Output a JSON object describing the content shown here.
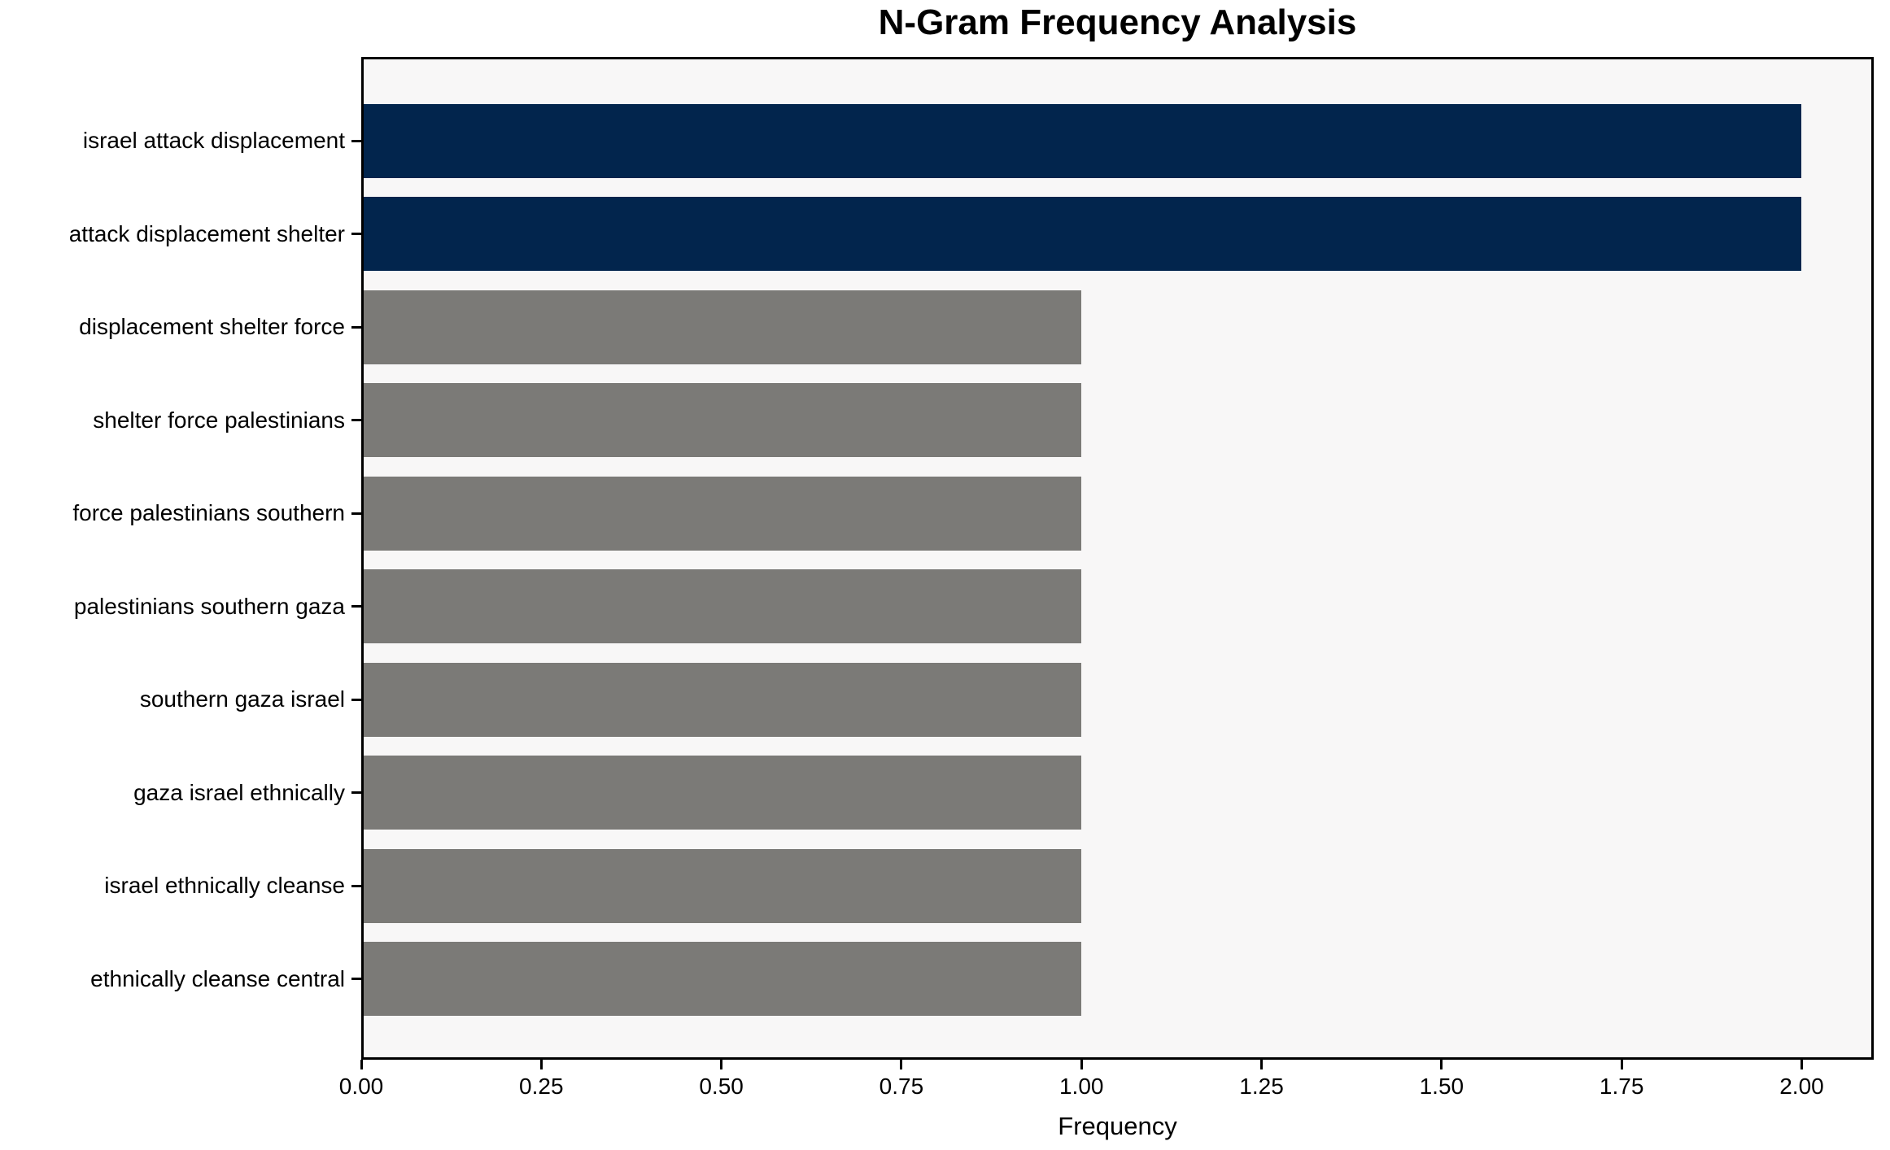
{
  "chart_data": {
    "type": "bar",
    "orientation": "horizontal",
    "title": "N-Gram Frequency Analysis",
    "xlabel": "Frequency",
    "ylabel": "",
    "categories": [
      "israel attack displacement",
      "attack displacement shelter",
      "displacement shelter force",
      "shelter force palestinians",
      "force palestinians southern",
      "palestinians southern gaza",
      "southern gaza israel",
      "gaza israel ethnically",
      "israel ethnically cleanse",
      "ethnically cleanse central"
    ],
    "values": [
      2,
      2,
      1,
      1,
      1,
      1,
      1,
      1,
      1,
      1
    ],
    "bar_colors": [
      "#02254d",
      "#02254d",
      "#7b7a77",
      "#7b7a77",
      "#7b7a77",
      "#7b7a77",
      "#7b7a77",
      "#7b7a77",
      "#7b7a77",
      "#7b7a77"
    ],
    "highlight_color": "#02254d",
    "default_color": "#7b7a77",
    "xlim": [
      0,
      2.1
    ],
    "xticks": [
      "0.00",
      "0.25",
      "0.50",
      "0.75",
      "1.00",
      "1.25",
      "1.50",
      "1.75",
      "2.00"
    ],
    "grid": false,
    "legend": "none",
    "plot_background": "#f8f7f7",
    "figure_background": "#ffffff",
    "spine_color": "#000000",
    "text_color": "#000000"
  }
}
